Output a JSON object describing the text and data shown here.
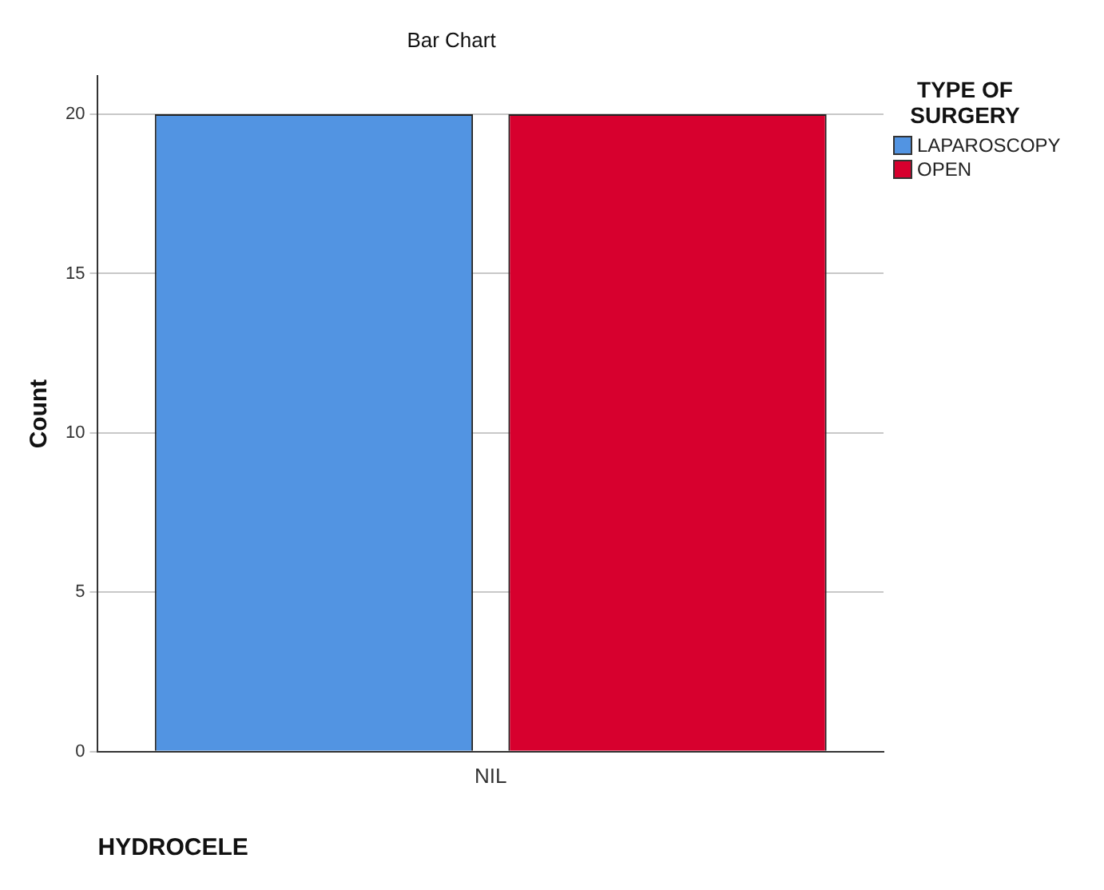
{
  "chart_data": {
    "type": "bar",
    "title": "Bar Chart",
    "xlabel": "HYDROCELE",
    "ylabel": "Count",
    "legend_title": "TYPE OF SURGERY",
    "categories": [
      "NIL"
    ],
    "series": [
      {
        "name": "LAPAROSCOPY",
        "color": "#5294e2",
        "values": [
          20
        ]
      },
      {
        "name": "OPEN",
        "color": "#d7002e",
        "values": [
          20
        ]
      }
    ],
    "ylim": [
      0,
      21.2
    ],
    "yticks": [
      0,
      5,
      10,
      15,
      20
    ],
    "grid": "y",
    "legend": "top right"
  }
}
